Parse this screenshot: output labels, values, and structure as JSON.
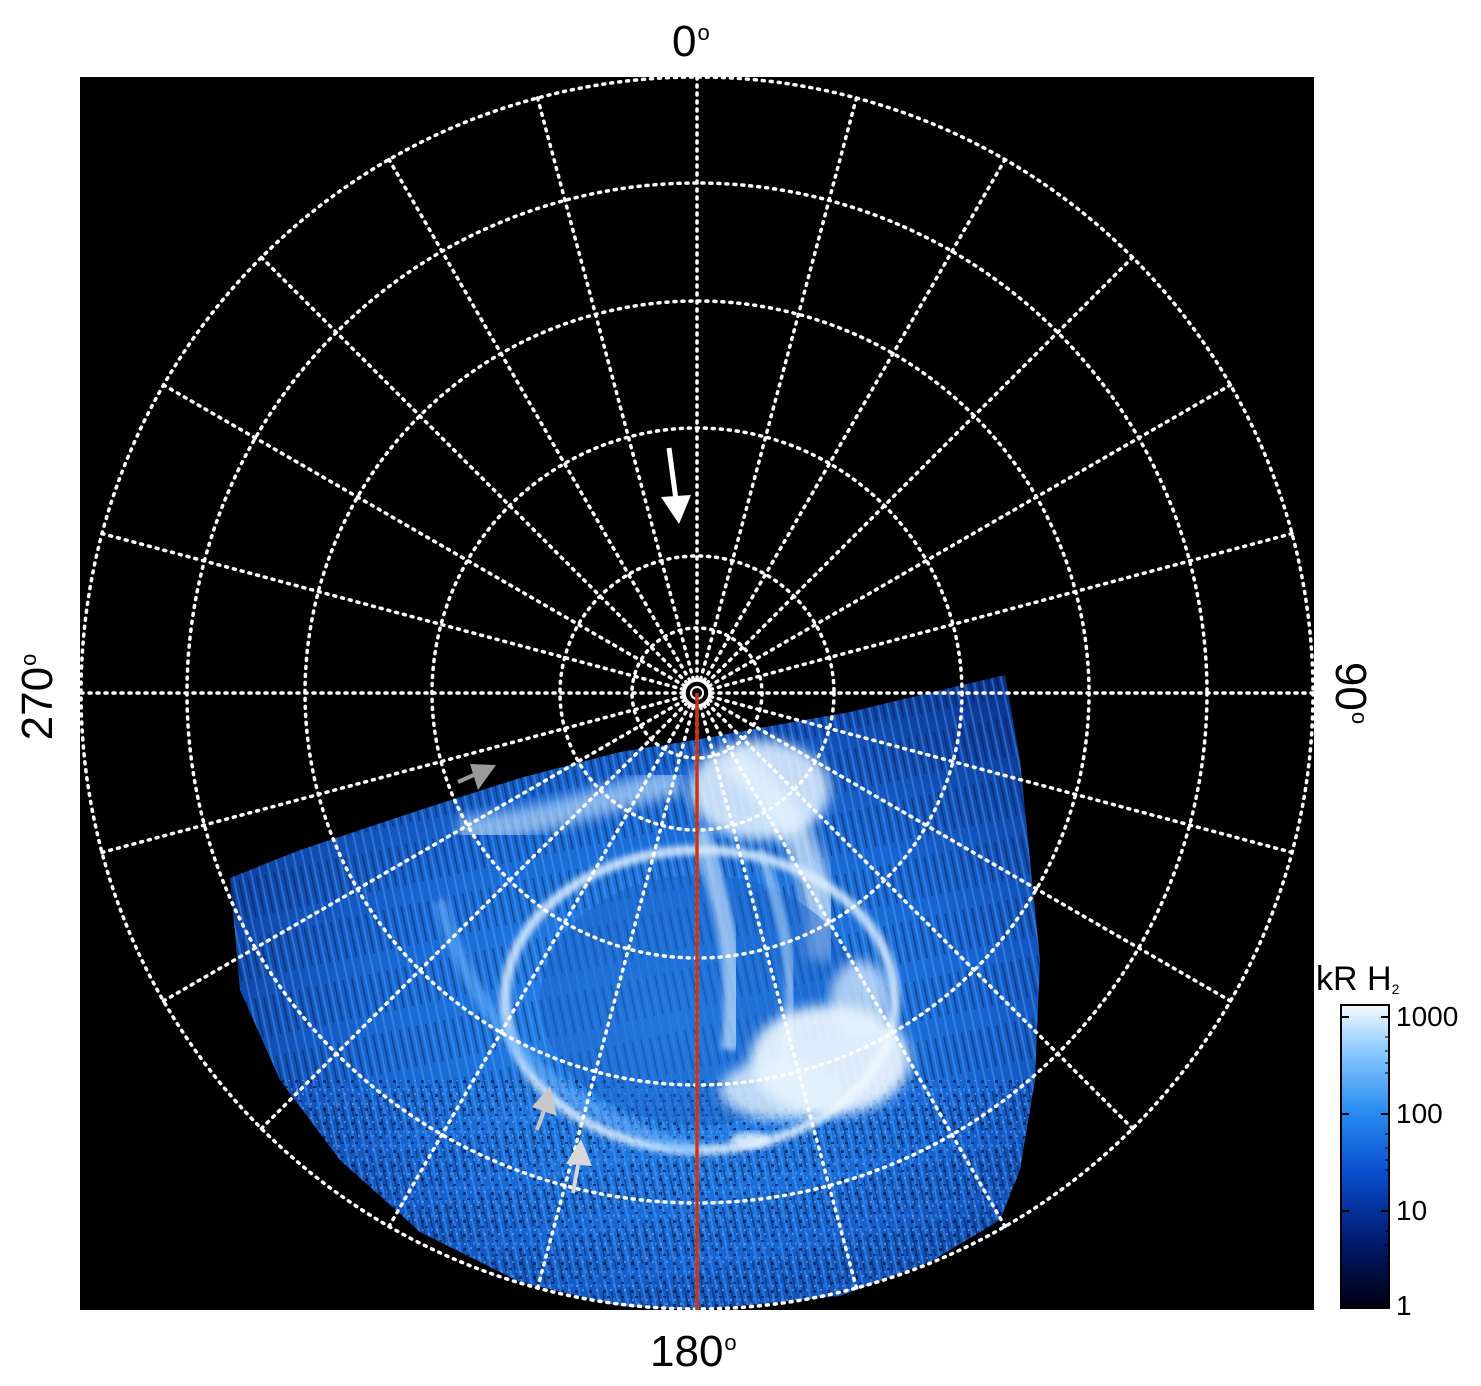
{
  "axis_labels": {
    "top": "0",
    "bottom": "180",
    "left": "270",
    "right": "90",
    "degree_symbol": "o"
  },
  "colorbar": {
    "title": "kR H",
    "title_subscript": "2",
    "ticks": [
      "1000",
      "100",
      "10",
      "1"
    ],
    "colors": [
      "#000010",
      "#001a6e",
      "#0a4fd0",
      "#2a8cf0",
      "#8ccaff",
      "#f5fbff"
    ]
  },
  "colors": {
    "background": "#000000",
    "grid": "#ffffff",
    "meridian_line": "#cc3311",
    "aurora_main": "#1f7fe8",
    "aurora_bright": "#e6f4ff",
    "arrow_large": "#ffffff",
    "arrow_small": "#b0b0b0"
  }
}
